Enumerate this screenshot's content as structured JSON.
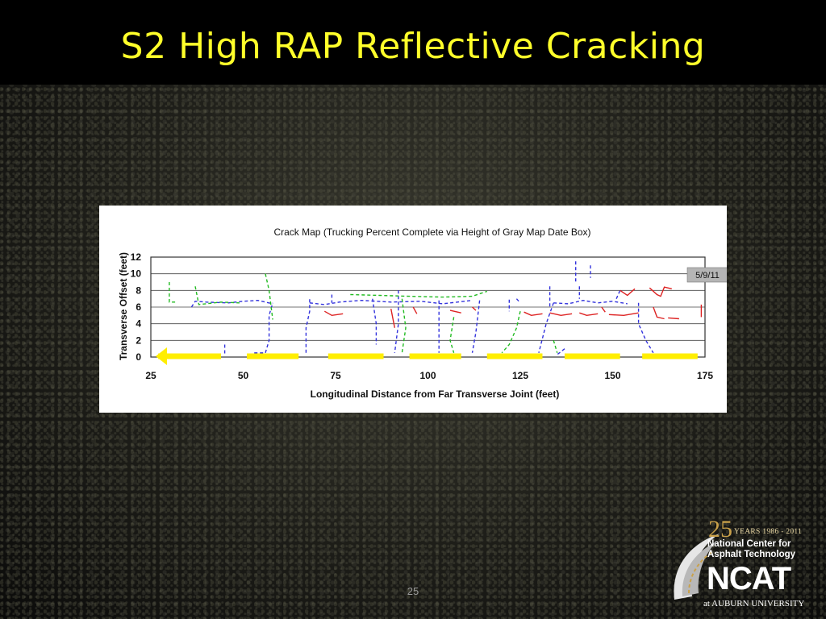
{
  "slide": {
    "title": "S2 High RAP Reflective Cracking",
    "page_number": "25"
  },
  "logo": {
    "big_number": "25",
    "years": "YEARS 1986 - 2011",
    "org_line1": "National Center for",
    "org_line2": "Asphalt Technology",
    "acronym": "NCAT",
    "university": "at AUBURN UNIVERSITY"
  },
  "colors": {
    "title": "#ffff2a",
    "longitudinal_crack": "#3333dd",
    "transverse_crack": "#22bb22",
    "recent_crack": "#dd2222",
    "wheel_path_marker": "#ffee00"
  },
  "chart_data": {
    "type": "scatter",
    "title": "Crack Map (Trucking Percent Complete via Height of Gray Map Date Box)",
    "xlabel": "Longitudinal Distance from Far Transverse Joint (feet)",
    "ylabel": "Transverse Offset (feet)",
    "xlim": [
      25,
      175
    ],
    "ylim": [
      0,
      12
    ],
    "x_ticks": [
      25,
      50,
      75,
      100,
      125,
      150,
      175
    ],
    "y_ticks": [
      0,
      2,
      4,
      6,
      8,
      10,
      12
    ],
    "grid": "horizontal",
    "date_box": "5/9/11",
    "direction_arrow": "left",
    "wheel_path_segments": [
      [
        27,
        44
      ],
      [
        51,
        65
      ],
      [
        73,
        88
      ],
      [
        95,
        109
      ],
      [
        116,
        131
      ],
      [
        137,
        152
      ],
      [
        158,
        173
      ]
    ],
    "series": [
      {
        "color": "#3333dd",
        "dashed": true,
        "lines": [
          [
            [
              36,
              6.0
            ],
            [
              37,
              6.7
            ],
            [
              40,
              6.6
            ],
            [
              46,
              6.5
            ],
            [
              50,
              6.7
            ],
            [
              54,
              6.8
            ],
            [
              58,
              6.4
            ]
          ],
          [
            [
              45,
              1.5
            ],
            [
              45,
              0.3
            ]
          ],
          [
            [
              56,
              0.5
            ],
            [
              57,
              2.0
            ],
            [
              57,
              5.0
            ],
            [
              58,
              6.5
            ]
          ],
          [
            [
              53,
              0.5
            ],
            [
              56,
              0.5
            ]
          ],
          [
            [
              67,
              0.5
            ],
            [
              67,
              3.5
            ],
            [
              68,
              5.5
            ],
            [
              68,
              7.2
            ]
          ],
          [
            [
              68,
              6.5
            ],
            [
              72,
              6.3
            ],
            [
              76,
              6.6
            ],
            [
              82,
              6.8
            ],
            [
              90,
              6.6
            ],
            [
              98,
              6.7
            ],
            [
              104,
              6.4
            ],
            [
              108,
              6.6
            ],
            [
              112,
              6.8
            ]
          ],
          [
            [
              74,
              7.5
            ],
            [
              74,
              6.5
            ]
          ],
          [
            [
              85,
              7.0
            ],
            [
              86,
              4.0
            ],
            [
              86,
              1.5
            ]
          ],
          [
            [
              92,
              8.0
            ],
            [
              92,
              4.0
            ],
            [
              91,
              0.5
            ]
          ],
          [
            [
              103,
              6.8
            ],
            [
              103,
              3.0
            ],
            [
              103,
              0.5
            ]
          ],
          [
            [
              114,
              6.8
            ],
            [
              113,
              3.0
            ],
            [
              112,
              0.5
            ]
          ],
          [
            [
              122,
              6.9
            ],
            [
              122,
              5.5
            ]
          ],
          [
            [
              124,
              7.0
            ],
            [
              125,
              6.5
            ]
          ],
          [
            [
              134,
              6.5
            ],
            [
              132,
              4.0
            ],
            [
              130,
              0.5
            ]
          ],
          [
            [
              133,
              8.5
            ],
            [
              133,
              6.0
            ]
          ],
          [
            [
              134,
              6.5
            ],
            [
              138,
              6.4
            ],
            [
              142,
              6.8
            ],
            [
              146,
              6.5
            ],
            [
              150,
              6.7
            ],
            [
              154,
              6.4
            ]
          ],
          [
            [
              140,
              11.5
            ],
            [
              140,
              9.0
            ]
          ],
          [
            [
              144,
              11.0
            ],
            [
              144,
              9.5
            ]
          ],
          [
            [
              141,
              8.5
            ],
            [
              141,
              7.0
            ]
          ],
          [
            [
              151,
              7.0
            ],
            [
              152,
              8.0
            ]
          ],
          [
            [
              157,
              6.5
            ],
            [
              157,
              4.0
            ],
            [
              159,
              2.0
            ],
            [
              161,
              0.5
            ]
          ],
          [
            [
              137,
              1.0
            ],
            [
              135,
              0.3
            ]
          ]
        ]
      },
      {
        "color": "#22bb22",
        "dashed": true,
        "lines": [
          [
            [
              30,
              9.0
            ],
            [
              30,
              6.6
            ],
            [
              32,
              6.6
            ]
          ],
          [
            [
              37,
              8.5
            ],
            [
              38,
              6.3
            ],
            [
              44,
              6.6
            ],
            [
              49,
              6.5
            ]
          ],
          [
            [
              56,
              10.0
            ],
            [
              57,
              8.0
            ],
            [
              58,
              4.5
            ]
          ],
          [
            [
              79,
              7.5
            ],
            [
              87,
              7.4
            ],
            [
              95,
              7.3
            ],
            [
              104,
              7.2
            ],
            [
              112,
              7.3
            ],
            [
              116,
              7.9
            ]
          ],
          [
            [
              93,
              7.0
            ],
            [
              94,
              3.5
            ],
            [
              93,
              0.5
            ]
          ],
          [
            [
              107,
              4.8
            ],
            [
              106,
              2.0
            ],
            [
              107,
              0.5
            ]
          ],
          [
            [
              125,
              5.5
            ],
            [
              124,
              3.5
            ],
            [
              122,
              1.5
            ],
            [
              120,
              0.5
            ]
          ],
          [
            [
              134,
              2.0
            ],
            [
              135,
              0.5
            ]
          ]
        ]
      },
      {
        "color": "#dd2222",
        "dashed": false,
        "lines": [
          [
            [
              72,
              5.5
            ],
            [
              74,
              5.0
            ],
            [
              77,
              5.2
            ]
          ],
          [
            [
              90,
              5.8
            ],
            [
              91,
              3.5
            ]
          ],
          [
            [
              96,
              6.0
            ],
            [
              97,
              5.2
            ]
          ],
          [
            [
              106,
              5.6
            ],
            [
              109,
              5.3
            ]
          ],
          [
            [
              112,
              6.0
            ],
            [
              113,
              5.6
            ]
          ],
          [
            [
              126,
              5.4
            ],
            [
              128,
              5.0
            ],
            [
              131,
              5.2
            ]
          ],
          [
            [
              133,
              5.3
            ],
            [
              136,
              5.0
            ],
            [
              139,
              5.2
            ]
          ],
          [
            [
              141,
              5.3
            ],
            [
              143,
              5.0
            ],
            [
              146,
              5.2
            ]
          ],
          [
            [
              147,
              6.0
            ],
            [
              148,
              5.4
            ]
          ],
          [
            [
              149,
              5.1
            ],
            [
              153,
              5.0
            ],
            [
              157,
              5.3
            ]
          ],
          [
            [
              152,
              8.0
            ],
            [
              154,
              7.4
            ],
            [
              156,
              8.2
            ]
          ],
          [
            [
              160,
              8.3
            ],
            [
              162,
              7.5
            ],
            [
              163,
              7.3
            ],
            [
              164,
              8.4
            ],
            [
              166,
              8.2
            ]
          ],
          [
            [
              161,
              6.0
            ],
            [
              162,
              4.8
            ],
            [
              164,
              4.6
            ]
          ],
          [
            [
              165,
              4.7
            ],
            [
              168,
              4.6
            ]
          ],
          [
            [
              174,
              6.3
            ],
            [
              174,
              4.8
            ]
          ]
        ]
      }
    ]
  }
}
